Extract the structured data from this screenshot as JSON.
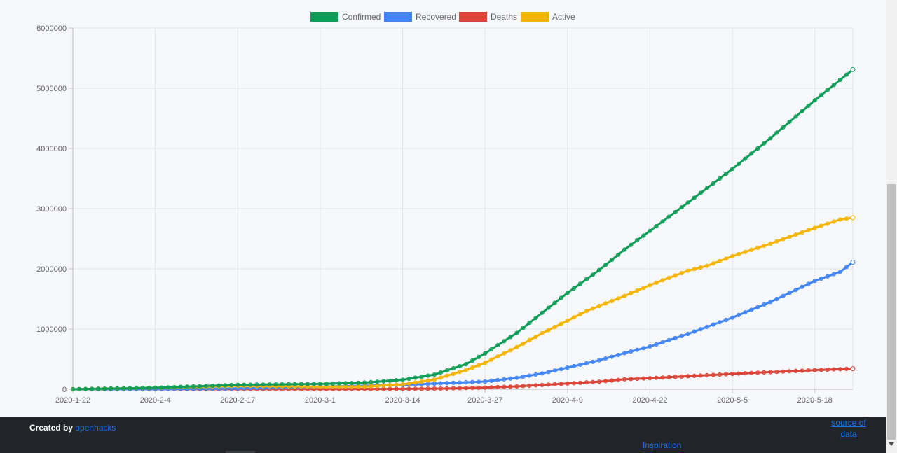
{
  "chart_data": {
    "type": "line",
    "ylim": [
      0,
      6000000
    ],
    "yticks": [
      0,
      1000000,
      2000000,
      3000000,
      4000000,
      5000000,
      6000000
    ],
    "ytick_labels": [
      "0",
      "1000000",
      "2000000",
      "3000000",
      "4000000",
      "5000000",
      "6000000"
    ],
    "x_tick_labels": [
      "2020-1-22",
      "2020-2-4",
      "2020-2-17",
      "2020-3-1",
      "2020-3-14",
      "2020-3-27",
      "2020-4-9",
      "2020-4-22",
      "2020-5-5",
      "2020-5-18"
    ],
    "x_start": "2020-1-22",
    "x_end": "2020-5-24",
    "grid": true,
    "legend_position": "top-center",
    "series": [
      {
        "name": "Confirmed",
        "color": "#0f9d58",
        "points": [
          [
            "2020-1-22",
            555
          ],
          [
            "2020-2-4",
            24000
          ],
          [
            "2020-2-17",
            73000
          ],
          [
            "2020-3-1",
            88000
          ],
          [
            "2020-3-8",
            110000
          ],
          [
            "2020-3-14",
            157000
          ],
          [
            "2020-3-19",
            243000
          ],
          [
            "2020-3-24",
            418000
          ],
          [
            "2020-3-27",
            595000
          ],
          [
            "2020-4-1",
            935000
          ],
          [
            "2020-4-5",
            1270000
          ],
          [
            "2020-4-9",
            1600000
          ],
          [
            "2020-4-14",
            1980000
          ],
          [
            "2020-4-18",
            2320000
          ],
          [
            "2020-4-22",
            2630000
          ],
          [
            "2020-4-28",
            3100000
          ],
          [
            "2020-5-5",
            3660000
          ],
          [
            "2020-5-11",
            4170000
          ],
          [
            "2020-5-18",
            4800000
          ],
          [
            "2020-5-24",
            5310000
          ]
        ]
      },
      {
        "name": "Recovered",
        "color": "#4285f4",
        "points": [
          [
            "2020-1-22",
            28
          ],
          [
            "2020-2-4",
            800
          ],
          [
            "2020-2-17",
            14000
          ],
          [
            "2020-3-1",
            43000
          ],
          [
            "2020-3-14",
            72000
          ],
          [
            "2020-3-27",
            128000
          ],
          [
            "2020-4-1",
            190000
          ],
          [
            "2020-4-5",
            263000
          ],
          [
            "2020-4-9",
            360000
          ],
          [
            "2020-4-14",
            480000
          ],
          [
            "2020-4-18",
            600000
          ],
          [
            "2020-4-22",
            710000
          ],
          [
            "2020-4-28",
            920000
          ],
          [
            "2020-5-5",
            1190000
          ],
          [
            "2020-5-11",
            1450000
          ],
          [
            "2020-5-18",
            1800000
          ],
          [
            "2020-5-22",
            1950000
          ],
          [
            "2020-5-24",
            2110000
          ]
        ]
      },
      {
        "name": "Deaths",
        "color": "#db4437",
        "points": [
          [
            "2020-1-22",
            17
          ],
          [
            "2020-2-4",
            500
          ],
          [
            "2020-2-17",
            1800
          ],
          [
            "2020-3-1",
            3000
          ],
          [
            "2020-3-14",
            5800
          ],
          [
            "2020-3-20",
            11000
          ],
          [
            "2020-3-27",
            27000
          ],
          [
            "2020-4-1",
            47000
          ],
          [
            "2020-4-9",
            95000
          ],
          [
            "2020-4-14",
            126000
          ],
          [
            "2020-4-18",
            165000
          ],
          [
            "2020-4-22",
            184000
          ],
          [
            "2020-4-28",
            216000
          ],
          [
            "2020-5-5",
            256000
          ],
          [
            "2020-5-11",
            285000
          ],
          [
            "2020-5-18",
            318000
          ],
          [
            "2020-5-24",
            342000
          ]
        ]
      },
      {
        "name": "Active",
        "color": "#f4b400",
        "points": [
          [
            "2020-1-22",
            510
          ],
          [
            "2020-2-4",
            22000
          ],
          [
            "2020-2-17",
            57000
          ],
          [
            "2020-3-1",
            42000
          ],
          [
            "2020-3-8",
            44000
          ],
          [
            "2020-3-14",
            80000
          ],
          [
            "2020-3-19",
            160000
          ],
          [
            "2020-3-24",
            320000
          ],
          [
            "2020-3-27",
            440000
          ],
          [
            "2020-4-1",
            700000
          ],
          [
            "2020-4-5",
            930000
          ],
          [
            "2020-4-9",
            1140000
          ],
          [
            "2020-4-12",
            1300000
          ],
          [
            "2020-4-18",
            1550000
          ],
          [
            "2020-4-22",
            1730000
          ],
          [
            "2020-4-28",
            1970000
          ],
          [
            "2020-5-1",
            2050000
          ],
          [
            "2020-5-5",
            2210000
          ],
          [
            "2020-5-11",
            2420000
          ],
          [
            "2020-5-18",
            2680000
          ],
          [
            "2020-5-22",
            2820000
          ],
          [
            "2020-5-24",
            2850000
          ]
        ]
      }
    ]
  },
  "footer": {
    "created_by": "Created by",
    "author_link": "openhacks",
    "source_link": "source of data",
    "inspiration_link": "Inspiration"
  }
}
